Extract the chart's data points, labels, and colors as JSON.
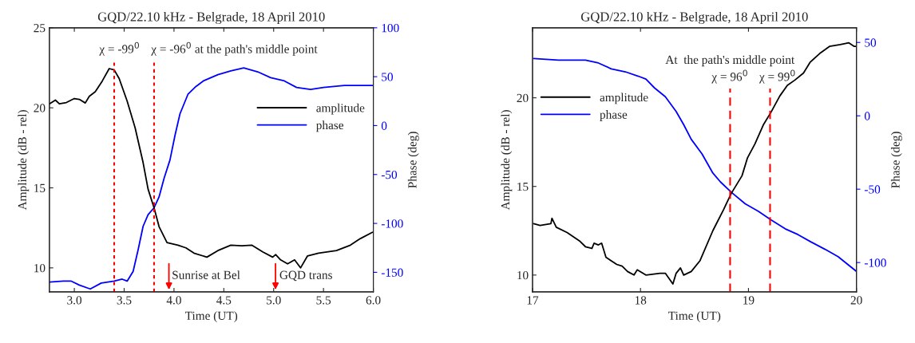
{
  "chart_data": [
    {
      "type": "line",
      "title": "GQD/22.10 kHz - Belgrade, 18 April 2010",
      "xlabel": "Time (UT)",
      "ylabel": "Amplitude (dB - rel)",
      "y2label": "Phase (deg)",
      "xlim": [
        2.75,
        6.0
      ],
      "xticks": [
        {
          "value": 3,
          "label": "3.0"
        },
        {
          "value": 3.5,
          "label": "3.5"
        },
        {
          "value": 4,
          "label": "4.0"
        },
        {
          "value": 4.5,
          "label": "4.5"
        },
        {
          "value": 5,
          "label": "5.0"
        },
        {
          "value": 5.5,
          "label": "5.5"
        },
        {
          "value": 6,
          "label": "6.0"
        }
      ],
      "ylim": [
        8.5,
        25
      ],
      "yticks": [
        10,
        15,
        20,
        25
      ],
      "y2lim": [
        -170,
        100
      ],
      "y2ticks": [
        -150,
        -100,
        -50,
        0,
        50,
        100
      ],
      "legend": "right",
      "series": [
        {
          "name": "amplitude",
          "color": "#000000",
          "x": [
            2.75,
            2.81,
            2.85,
            2.92,
            3.0,
            3.05,
            3.11,
            3.15,
            3.21,
            3.28,
            3.35,
            3.4,
            3.45,
            3.53,
            3.61,
            3.69,
            3.74,
            3.8,
            3.85,
            3.93,
            4.04,
            4.12,
            4.2,
            4.33,
            4.44,
            4.57,
            4.68,
            4.78,
            4.89,
            4.99,
            5.02,
            5.07,
            5.14,
            5.21,
            5.27,
            5.34,
            5.45,
            5.63,
            5.77,
            5.87,
            5.99
          ],
          "values": [
            20.25,
            20.48,
            20.25,
            20.33,
            20.58,
            20.53,
            20.3,
            20.72,
            21.0,
            21.67,
            22.45,
            22.37,
            21.83,
            20.42,
            18.75,
            16.58,
            14.92,
            13.75,
            12.58,
            11.58,
            11.42,
            11.25,
            10.92,
            10.67,
            11.08,
            11.42,
            11.38,
            11.42,
            11.0,
            10.67,
            10.83,
            10.5,
            10.25,
            10.5,
            10.0,
            10.75,
            10.92,
            11.08,
            11.42,
            11.83,
            12.22
          ]
        },
        {
          "name": "phase",
          "color": "#0000ff",
          "axis": "y2",
          "x": [
            2.75,
            2.89,
            2.97,
            3.05,
            3.16,
            3.27,
            3.4,
            3.48,
            3.53,
            3.59,
            3.64,
            3.69,
            3.74,
            3.8,
            3.85,
            3.9,
            3.96,
            4.01,
            4.06,
            4.14,
            4.22,
            4.3,
            4.44,
            4.57,
            4.7,
            4.84,
            4.97,
            5.1,
            5.23,
            5.37,
            5.5,
            5.71,
            5.99
          ],
          "values": [
            -160,
            -159,
            -159,
            -163,
            -167,
            -161,
            -159,
            -157,
            -159,
            -149,
            -127,
            -103,
            -91,
            -84,
            -73,
            -54,
            -35,
            -10,
            12,
            32,
            40,
            46,
            52,
            56,
            59,
            55,
            49,
            46,
            39,
            37,
            39,
            41,
            41
          ]
        }
      ],
      "ref_lines": [
        {
          "axis": "x",
          "value": 3.4,
          "color": "#ff0000",
          "line_style": "dotted"
        },
        {
          "axis": "x",
          "value": 3.8,
          "color": "#ff0000",
          "line_style": "dotted"
        }
      ],
      "annotations": [
        "χ = -99$^{0}$",
        "χ = -96$^{0}$ at the path's middle point",
        "Sunrise at Bel",
        "GQD trans"
      ]
    },
    {
      "type": "line",
      "title": "GQD/22.10 kHz - Belgrade, 18 April 2010",
      "xlabel": "Time (UT)",
      "ylabel": "Amplitude (dB - rel)",
      "y2label": "Phase (deg)",
      "xlim": [
        17,
        20
      ],
      "xticks": [
        17,
        18,
        19,
        20
      ],
      "ylim": [
        9.05,
        23.95
      ],
      "yticks": [
        10,
        15,
        20
      ],
      "y2lim": [
        -120,
        60
      ],
      "y2ticks": [
        -100,
        -50,
        0,
        50
      ],
      "legend": "left",
      "series": [
        {
          "name": "amplitude",
          "color": "#000000",
          "x": [
            17.01,
            17.07,
            17.17,
            17.18,
            17.22,
            17.32,
            17.44,
            17.49,
            17.55,
            17.57,
            17.61,
            17.64,
            17.68,
            17.78,
            17.83,
            17.88,
            17.94,
            17.97,
            18.05,
            18.18,
            18.23,
            18.3,
            18.33,
            18.37,
            18.4,
            18.47,
            18.55,
            18.67,
            18.77,
            18.84,
            18.94,
            18.99,
            19.06,
            19.14,
            19.21,
            19.29,
            19.36,
            19.43,
            19.51,
            19.57,
            19.66,
            19.75,
            19.85,
            19.93,
            19.98,
            20.0
          ],
          "values": [
            12.9,
            12.8,
            12.9,
            13.2,
            12.7,
            12.4,
            11.9,
            11.6,
            11.5,
            11.8,
            11.7,
            11.8,
            11.0,
            10.6,
            10.5,
            10.2,
            10.0,
            10.3,
            10.0,
            10.1,
            10.1,
            9.5,
            10.1,
            10.4,
            10.0,
            10.2,
            10.8,
            12.5,
            13.7,
            14.6,
            15.6,
            16.6,
            17.4,
            18.5,
            19.2,
            20.1,
            20.7,
            21.0,
            21.4,
            22.0,
            22.5,
            22.9,
            23.0,
            23.1,
            22.9,
            22.9
          ]
        },
        {
          "name": "phase",
          "color": "#0000ff",
          "axis": "y2",
          "x": [
            17.01,
            17.24,
            17.49,
            17.61,
            17.73,
            17.86,
            17.98,
            18.05,
            18.13,
            18.23,
            18.33,
            18.4,
            18.47,
            18.57,
            18.67,
            18.74,
            18.84,
            18.97,
            19.09,
            19.21,
            19.34,
            19.46,
            19.58,
            19.71,
            19.83,
            20.0
          ],
          "values": [
            39,
            38,
            38,
            36,
            32,
            30,
            27,
            25,
            19,
            13,
            3,
            -6,
            -16,
            -26,
            -39,
            -45,
            -52,
            -60,
            -65,
            -71,
            -77,
            -81,
            -86,
            -91,
            -96,
            -106
          ]
        }
      ],
      "ref_lines": [
        {
          "axis": "x",
          "value": 18.83,
          "color": "#ff0000",
          "line_style": "dashed"
        },
        {
          "axis": "x",
          "value": 19.2,
          "color": "#ff0000",
          "line_style": "dashed"
        }
      ],
      "annotations": [
        "At  the path's middle point",
        "χ = 96$^{0}$",
        "χ = 99$^{0}$"
      ]
    }
  ]
}
